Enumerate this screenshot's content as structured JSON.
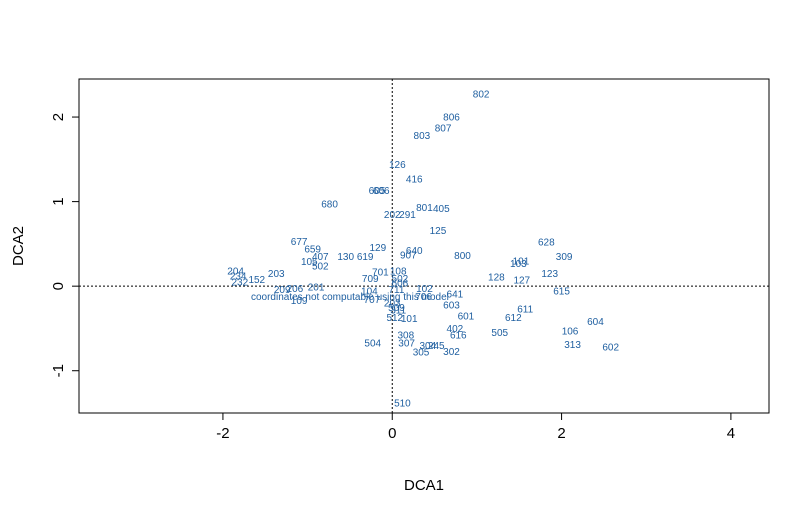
{
  "chart_data": {
    "type": "scatter",
    "title": "",
    "xlabel": "DCA1",
    "ylabel": "DCA2",
    "xlim": [
      -3.7,
      4.45
    ],
    "ylim": [
      -1.5,
      2.45
    ],
    "x_ticks": [
      -2,
      0,
      2,
      4
    ],
    "y_ticks": [
      -1,
      0,
      1,
      2
    ],
    "x_tick_labels": [
      "-2",
      "0",
      "2",
      "4"
    ],
    "y_tick_labels": [
      "-1",
      "0",
      "1",
      "2"
    ],
    "reference_lines": {
      "x": 0,
      "y": 0,
      "style": "dotted"
    },
    "grid": false,
    "label_color": "#1f5fa0",
    "annotation": {
      "text": "coordinates not computable using this model",
      "x": -0.5,
      "y": -0.12
    },
    "points": [
      {
        "label": "802",
        "x": 1.05,
        "y": 2.27
      },
      {
        "label": "806",
        "x": 0.7,
        "y": 2.0
      },
      {
        "label": "807",
        "x": 0.6,
        "y": 1.87
      },
      {
        "label": "803",
        "x": 0.35,
        "y": 1.78
      },
      {
        "label": "126",
        "x": 0.06,
        "y": 1.44
      },
      {
        "label": "416",
        "x": 0.26,
        "y": 1.27
      },
      {
        "label": "680",
        "x": -0.74,
        "y": 0.97
      },
      {
        "label": "605",
        "x": -0.18,
        "y": 1.13
      },
      {
        "label": "606",
        "x": -0.13,
        "y": 1.13
      },
      {
        "label": "801",
        "x": 0.38,
        "y": 0.93
      },
      {
        "label": "405",
        "x": 0.58,
        "y": 0.92
      },
      {
        "label": "202",
        "x": 0.0,
        "y": 0.85
      },
      {
        "label": "291",
        "x": 0.18,
        "y": 0.85
      },
      {
        "label": "125",
        "x": 0.54,
        "y": 0.66
      },
      {
        "label": "677",
        "x": -1.1,
        "y": 0.53
      },
      {
        "label": "659",
        "x": -0.94,
        "y": 0.44
      },
      {
        "label": "129",
        "x": -0.17,
        "y": 0.46
      },
      {
        "label": "640",
        "x": 0.26,
        "y": 0.42
      },
      {
        "label": "907",
        "x": 0.19,
        "y": 0.37
      },
      {
        "label": "628",
        "x": 1.82,
        "y": 0.52
      },
      {
        "label": "800",
        "x": 0.83,
        "y": 0.36
      },
      {
        "label": "309",
        "x": 2.03,
        "y": 0.35
      },
      {
        "label": "407",
        "x": -0.85,
        "y": 0.35
      },
      {
        "label": "130",
        "x": -0.55,
        "y": 0.35
      },
      {
        "label": "619",
        "x": -0.32,
        "y": 0.35
      },
      {
        "label": "105",
        "x": -0.98,
        "y": 0.29
      },
      {
        "label": "502",
        "x": -0.85,
        "y": 0.24
      },
      {
        "label": "101",
        "x": 1.52,
        "y": 0.3
      },
      {
        "label": "103",
        "x": 1.49,
        "y": 0.27
      },
      {
        "label": "701",
        "x": -0.14,
        "y": 0.17
      },
      {
        "label": "108",
        "x": 0.07,
        "y": 0.18
      },
      {
        "label": "123",
        "x": 1.86,
        "y": 0.15
      },
      {
        "label": "128",
        "x": 1.23,
        "y": 0.11
      },
      {
        "label": "127",
        "x": 1.53,
        "y": 0.07
      },
      {
        "label": "204",
        "x": -1.85,
        "y": 0.18
      },
      {
        "label": "203",
        "x": -1.37,
        "y": 0.15
      },
      {
        "label": "152",
        "x": -1.6,
        "y": 0.08
      },
      {
        "label": "234",
        "x": -1.82,
        "y": 0.12
      },
      {
        "label": "232",
        "x": -1.8,
        "y": 0.05
      },
      {
        "label": "709",
        "x": -0.26,
        "y": 0.09
      },
      {
        "label": "502",
        "x": 0.09,
        "y": 0.09
      },
      {
        "label": "606",
        "x": 0.09,
        "y": 0.04
      },
      {
        "label": "615",
        "x": 2.0,
        "y": -0.06
      },
      {
        "label": "201",
        "x": -0.9,
        "y": -0.01
      },
      {
        "label": "206",
        "x": -1.15,
        "y": -0.03
      },
      {
        "label": "209",
        "x": -1.3,
        "y": -0.04
      },
      {
        "label": "104",
        "x": -0.27,
        "y": -0.06
      },
      {
        "label": "711",
        "x": 0.05,
        "y": -0.04
      },
      {
        "label": "102",
        "x": 0.38,
        "y": -0.03
      },
      {
        "label": "641",
        "x": 0.74,
        "y": -0.09
      },
      {
        "label": "706",
        "x": 0.37,
        "y": -0.12
      },
      {
        "label": "109",
        "x": -1.1,
        "y": -0.17
      },
      {
        "label": "707",
        "x": -0.24,
        "y": -0.16
      },
      {
        "label": "203",
        "x": 0.0,
        "y": -0.2
      },
      {
        "label": "509",
        "x": 0.05,
        "y": -0.25
      },
      {
        "label": "311",
        "x": 0.07,
        "y": -0.28
      },
      {
        "label": "603",
        "x": 0.7,
        "y": -0.22
      },
      {
        "label": "611",
        "x": 1.57,
        "y": -0.27
      },
      {
        "label": "601",
        "x": 0.87,
        "y": -0.35
      },
      {
        "label": "612",
        "x": 1.43,
        "y": -0.37
      },
      {
        "label": "604",
        "x": 2.4,
        "y": -0.42
      },
      {
        "label": "512",
        "x": 0.03,
        "y": -0.37
      },
      {
        "label": "101",
        "x": 0.2,
        "y": -0.38
      },
      {
        "label": "402",
        "x": 0.74,
        "y": -0.5
      },
      {
        "label": "505",
        "x": 1.27,
        "y": -0.55
      },
      {
        "label": "106",
        "x": 2.1,
        "y": -0.53
      },
      {
        "label": "616",
        "x": 0.78,
        "y": -0.58
      },
      {
        "label": "308",
        "x": 0.16,
        "y": -0.58
      },
      {
        "label": "504",
        "x": -0.23,
        "y": -0.67
      },
      {
        "label": "307",
        "x": 0.17,
        "y": -0.67
      },
      {
        "label": "304",
        "x": 0.42,
        "y": -0.7
      },
      {
        "label": "245",
        "x": 0.52,
        "y": -0.7
      },
      {
        "label": "313",
        "x": 2.13,
        "y": -0.69
      },
      {
        "label": "602",
        "x": 2.58,
        "y": -0.72
      },
      {
        "label": "305",
        "x": 0.34,
        "y": -0.78
      },
      {
        "label": "302",
        "x": 0.7,
        "y": -0.77
      },
      {
        "label": "510",
        "x": 0.12,
        "y": -1.38
      }
    ]
  }
}
